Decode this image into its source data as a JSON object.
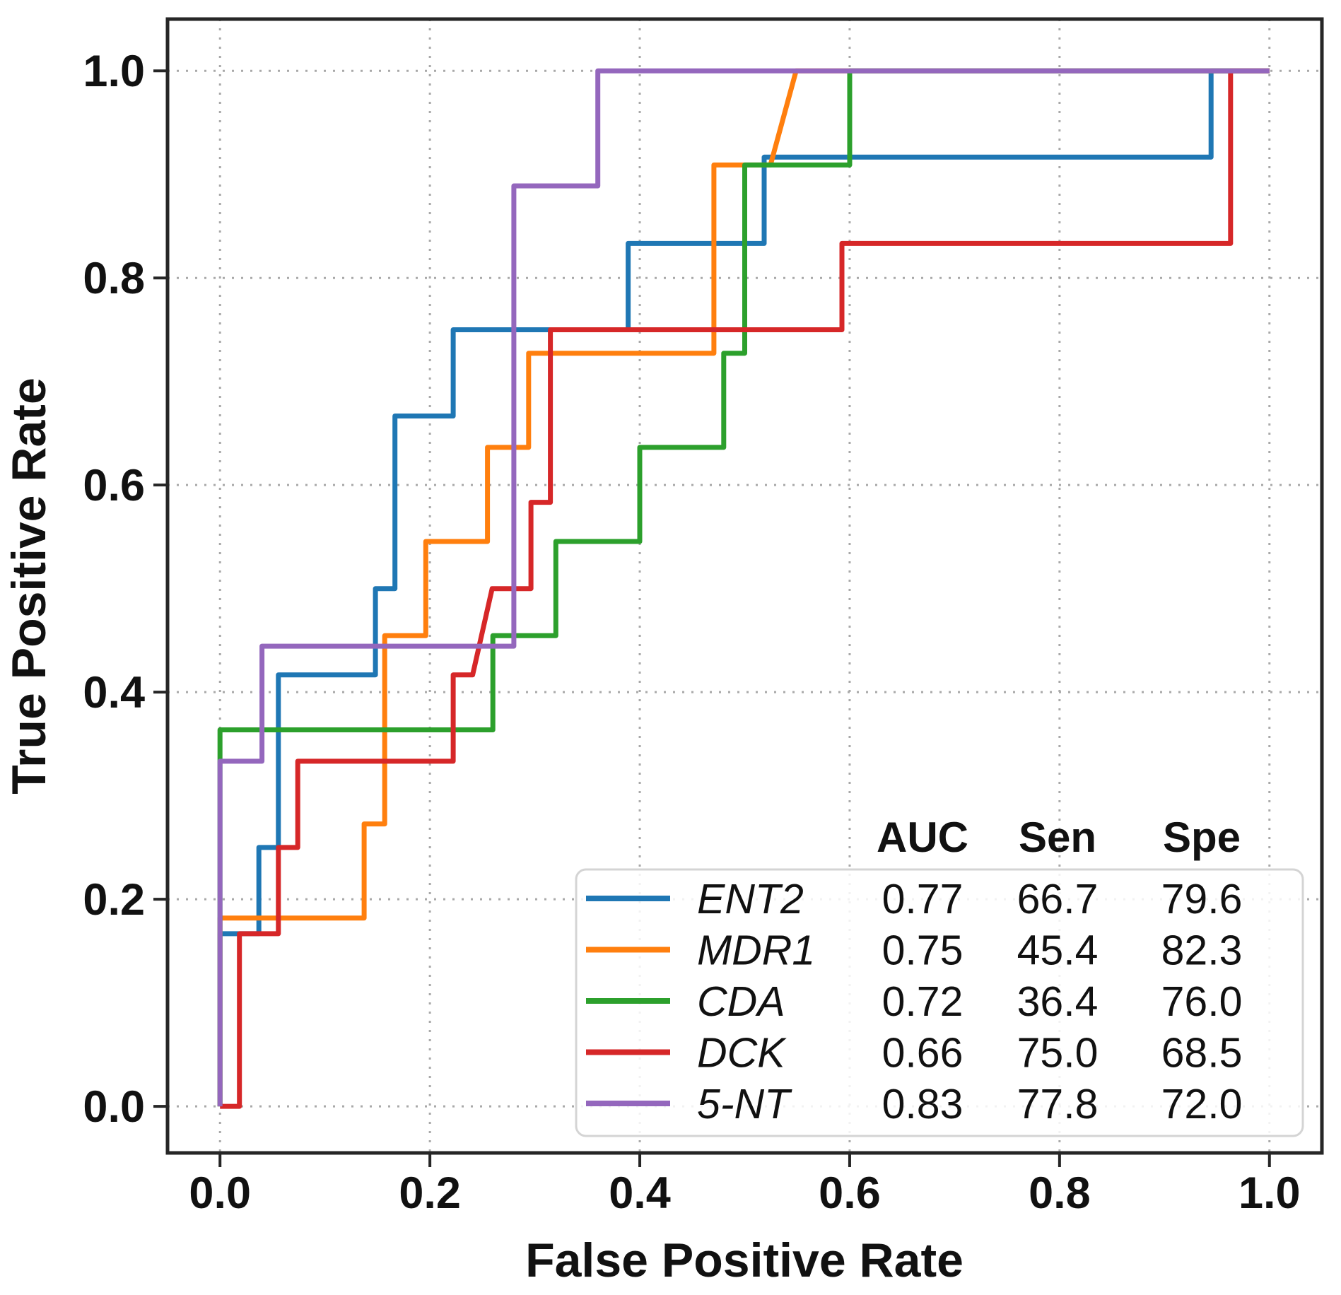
{
  "chart_data": {
    "type": "line",
    "variant": "roc-step-curves",
    "title": "",
    "xlabel": "False Positive Rate",
    "ylabel": "True Positive Rate",
    "xlim": [
      -0.05,
      1.05
    ],
    "ylim": [
      -0.045,
      1.05
    ],
    "xticks": {
      "values": [
        0.0,
        0.2,
        0.4,
        0.6,
        0.8,
        1.0
      ],
      "labels": [
        "0.0",
        "0.2",
        "0.4",
        "0.6",
        "0.8",
        "1.0"
      ]
    },
    "yticks": {
      "values": [
        0.0,
        0.2,
        0.4,
        0.6,
        0.8,
        1.0
      ],
      "labels": [
        "0.0",
        "0.2",
        "0.4",
        "0.6",
        "0.8",
        "1.0"
      ]
    },
    "grid": {
      "on": true,
      "style": "dotted",
      "color": "#a9a9a9"
    },
    "axis_color": "#262626",
    "text_color": "#111111",
    "legend": {
      "position": "lower right",
      "headers": [
        "AUC",
        "Sen",
        "Spe"
      ]
    },
    "series": [
      {
        "name": "ENT2",
        "color": "#1f77b4",
        "auc": "0.77",
        "sen": "66.7",
        "spe": "79.6",
        "points": [
          [
            0,
            0
          ],
          [
            0,
            0.1667
          ],
          [
            0.037,
            0.1667
          ],
          [
            0.037,
            0.25
          ],
          [
            0.0556,
            0.25
          ],
          [
            0.0556,
            0.4167
          ],
          [
            0.1481,
            0.4167
          ],
          [
            0.1481,
            0.5
          ],
          [
            0.1667,
            0.5
          ],
          [
            0.1667,
            0.6667
          ],
          [
            0.2222,
            0.6667
          ],
          [
            0.2222,
            0.75
          ],
          [
            0.3889,
            0.75
          ],
          [
            0.3889,
            0.8333
          ],
          [
            0.5185,
            0.8333
          ],
          [
            0.5185,
            0.9167
          ],
          [
            0.9444,
            0.9167
          ],
          [
            0.9444,
            1
          ],
          [
            1,
            1
          ]
        ]
      },
      {
        "name": "MDR1",
        "color": "#ff7f0e",
        "auc": "0.75",
        "sen": "45.4",
        "spe": "82.3",
        "points": [
          [
            0,
            0
          ],
          [
            0,
            0.1818
          ],
          [
            0.1373,
            0.1818
          ],
          [
            0.1373,
            0.2727
          ],
          [
            0.1569,
            0.2727
          ],
          [
            0.1569,
            0.4545
          ],
          [
            0.1961,
            0.4545
          ],
          [
            0.1961,
            0.5455
          ],
          [
            0.2549,
            0.5455
          ],
          [
            0.2549,
            0.6364
          ],
          [
            0.2941,
            0.6364
          ],
          [
            0.2941,
            0.7273
          ],
          [
            0.4706,
            0.7273
          ],
          [
            0.4706,
            0.9091
          ],
          [
            0.5245,
            0.9091
          ],
          [
            0.549,
            1
          ],
          [
            1,
            1
          ]
        ]
      },
      {
        "name": "CDA",
        "color": "#2ca02c",
        "auc": "0.72",
        "sen": "36.4",
        "spe": "76.0",
        "points": [
          [
            0,
            0
          ],
          [
            0,
            0.3636
          ],
          [
            0.26,
            0.3636
          ],
          [
            0.26,
            0.4545
          ],
          [
            0.32,
            0.4545
          ],
          [
            0.32,
            0.5455
          ],
          [
            0.4,
            0.5455
          ],
          [
            0.4,
            0.6364
          ],
          [
            0.48,
            0.6364
          ],
          [
            0.48,
            0.7273
          ],
          [
            0.5,
            0.7273
          ],
          [
            0.5,
            0.9091
          ],
          [
            0.6,
            0.9091
          ],
          [
            0.6,
            1
          ],
          [
            1,
            1
          ]
        ]
      },
      {
        "name": "DCK",
        "color": "#d62728",
        "auc": "0.66",
        "sen": "75.0",
        "spe": "68.5",
        "points": [
          [
            0,
            0
          ],
          [
            0.0185,
            0
          ],
          [
            0.0185,
            0.1667
          ],
          [
            0.0556,
            0.1667
          ],
          [
            0.0556,
            0.25
          ],
          [
            0.0741,
            0.25
          ],
          [
            0.0741,
            0.3333
          ],
          [
            0.2222,
            0.3333
          ],
          [
            0.2222,
            0.4167
          ],
          [
            0.2407,
            0.4167
          ],
          [
            0.2593,
            0.5
          ],
          [
            0.2963,
            0.5
          ],
          [
            0.2963,
            0.5833
          ],
          [
            0.3148,
            0.5833
          ],
          [
            0.3148,
            0.75
          ],
          [
            0.5926,
            0.75
          ],
          [
            0.5926,
            0.8333
          ],
          [
            0.963,
            0.8333
          ],
          [
            0.963,
            1
          ],
          [
            1,
            1
          ]
        ]
      },
      {
        "name": "5-NT",
        "color": "#9467bd",
        "auc": "0.83",
        "sen": "77.8",
        "spe": "72.0",
        "points": [
          [
            0,
            0
          ],
          [
            0,
            0.3333
          ],
          [
            0.04,
            0.3333
          ],
          [
            0.04,
            0.4444
          ],
          [
            0.28,
            0.4444
          ],
          [
            0.28,
            0.8889
          ],
          [
            0.36,
            0.8889
          ],
          [
            0.36,
            1
          ],
          [
            1,
            1
          ]
        ]
      }
    ]
  }
}
